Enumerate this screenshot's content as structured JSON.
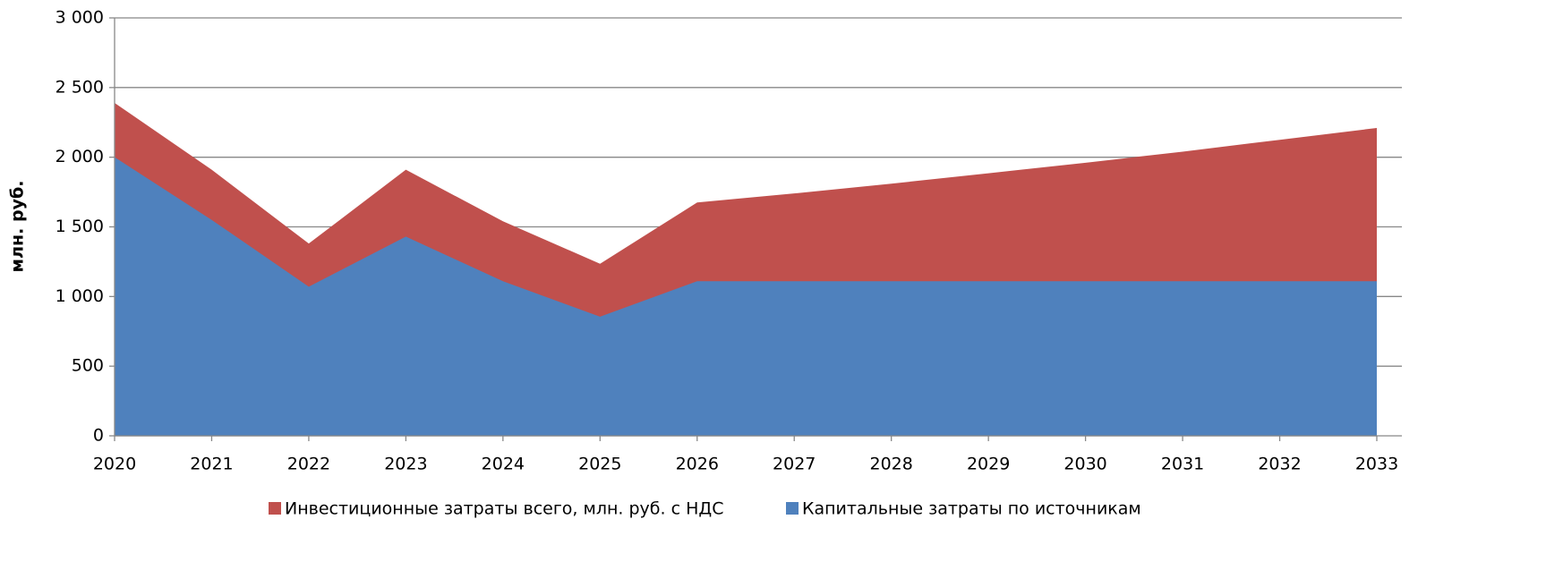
{
  "chart_data": {
    "type": "area",
    "y_label": "млн. руб.",
    "categories": [
      "2020",
      "2021",
      "2022",
      "2023",
      "2024",
      "2025",
      "2026",
      "2027",
      "2028",
      "2029",
      "2030",
      "2031",
      "2032",
      "2033"
    ],
    "series": [
      {
        "name": "Инвестиционные затраты всего, млн. руб. с НДС",
        "color": "#c0504d",
        "values": [
          2390,
          1910,
          1380,
          1910,
          1540,
          1235,
          1675,
          1740,
          1810,
          1885,
          1960,
          2040,
          2125,
          2210
        ]
      },
      {
        "name": "Капитальные затраты по источникам",
        "color": "#4f81bd",
        "values": [
          2000,
          1550,
          1070,
          1430,
          1110,
          855,
          1110,
          1110,
          1110,
          1110,
          1110,
          1110,
          1110,
          1110
        ]
      }
    ],
    "ylim": [
      0,
      3000
    ],
    "yticks": [
      0,
      500,
      {
        "value": 1000,
        "label": "1 000"
      },
      {
        "value": 1500,
        "label": "1 500"
      },
      {
        "value": 2000,
        "label": "2 000"
      },
      {
        "value": 2500,
        "label": "2 500"
      },
      {
        "value": 3000,
        "label": "3 000"
      }
    ],
    "grid": true,
    "legend": "bottom"
  }
}
